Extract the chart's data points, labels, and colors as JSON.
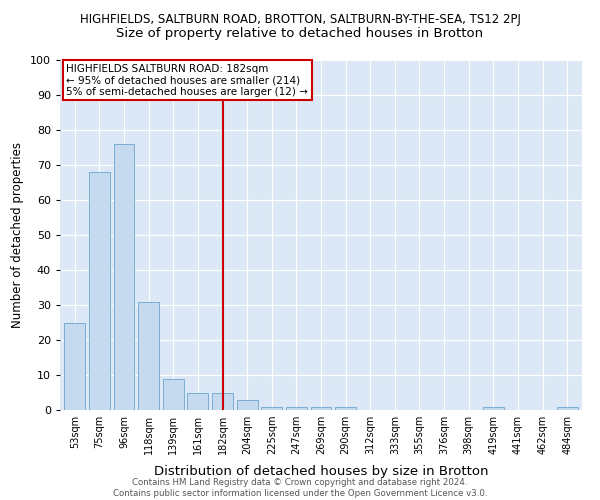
{
  "title": "HIGHFIELDS, SALTBURN ROAD, BROTTON, SALTBURN-BY-THE-SEA, TS12 2PJ",
  "subtitle": "Size of property relative to detached houses in Brotton",
  "xlabel": "Distribution of detached houses by size in Brotton",
  "ylabel": "Number of detached properties",
  "categories": [
    "53sqm",
    "75sqm",
    "96sqm",
    "118sqm",
    "139sqm",
    "161sqm",
    "182sqm",
    "204sqm",
    "225sqm",
    "247sqm",
    "269sqm",
    "290sqm",
    "312sqm",
    "333sqm",
    "355sqm",
    "376sqm",
    "398sqm",
    "419sqm",
    "441sqm",
    "462sqm",
    "484sqm"
  ],
  "values": [
    25,
    68,
    76,
    31,
    9,
    5,
    5,
    3,
    1,
    1,
    1,
    1,
    0,
    0,
    0,
    0,
    0,
    1,
    0,
    0,
    1
  ],
  "bar_color": "#c5d9ef",
  "bar_edge_color": "#7aadd4",
  "highlight_index": 6,
  "highlight_line_color": "#cc0000",
  "annotation_line1": "HIGHFIELDS SALTBURN ROAD: 182sqm",
  "annotation_line2": "← 95% of detached houses are smaller (214)",
  "annotation_line3": "5% of semi-detached houses are larger (12) →",
  "annotation_box_color": "#ffffff",
  "annotation_box_edge_color": "#cc0000",
  "ylim": [
    0,
    100
  ],
  "yticks": [
    0,
    10,
    20,
    30,
    40,
    50,
    60,
    70,
    80,
    90,
    100
  ],
  "background_color": "#dce8f5",
  "footer": "Contains HM Land Registry data © Crown copyright and database right 2024.\nContains public sector information licensed under the Open Government Licence v3.0.",
  "title_fontsize": 8.5,
  "subtitle_fontsize": 9.5,
  "xlabel_fontsize": 9.5,
  "ylabel_fontsize": 8.5,
  "annotation_fontsize": 7.5
}
